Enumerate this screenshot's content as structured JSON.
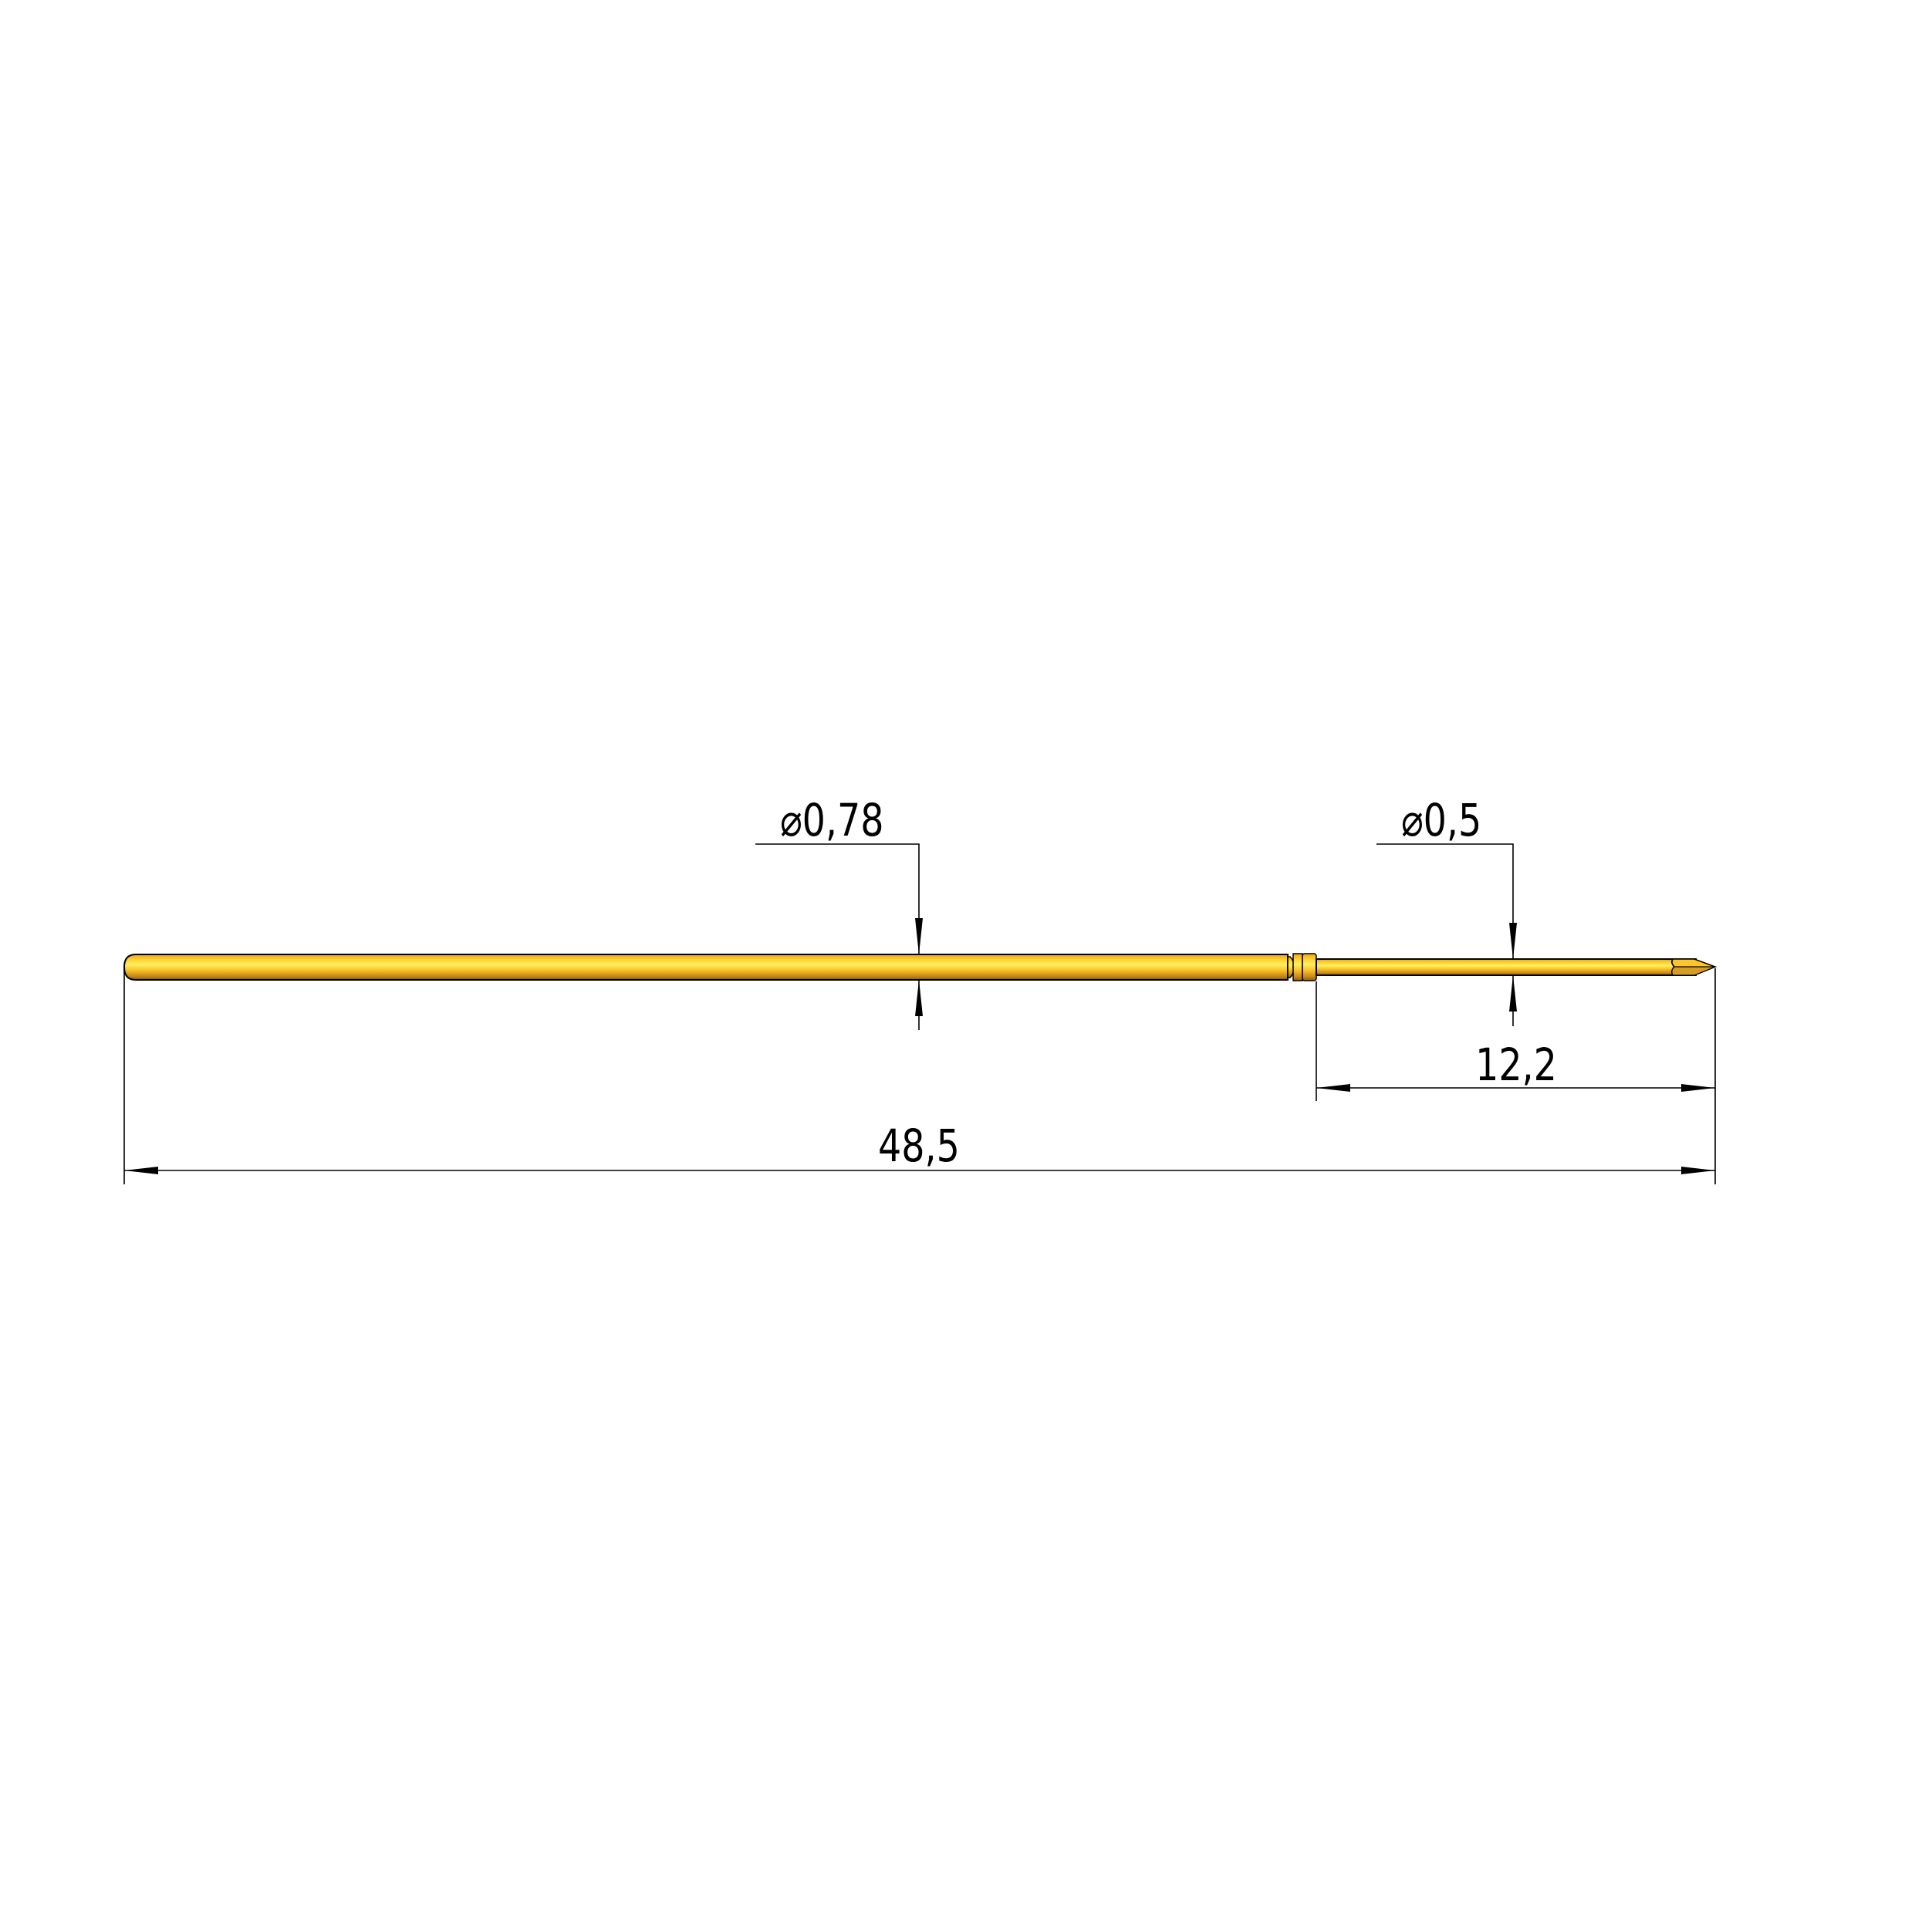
{
  "drawing": {
    "part_color": "#F5B820",
    "dimensions": {
      "barrel_diameter": {
        "symbol": "⌀",
        "value": "0,78"
      },
      "plunger_diameter": {
        "symbol": "⌀",
        "value": "0,5"
      },
      "plunger_length": {
        "value": "12,2"
      },
      "overall_length": {
        "value": "48,5"
      }
    }
  }
}
